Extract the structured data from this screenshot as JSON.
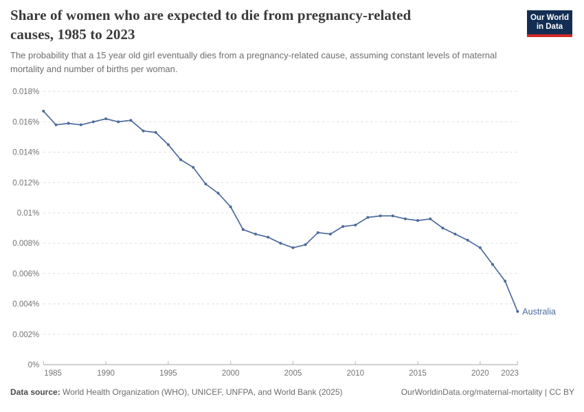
{
  "header": {
    "title": "Share of women who are expected to die from pregnancy-related causes, 1985 to 2023",
    "subtitle": "The probability that a 15 year old girl eventually dies from a pregnancy-related cause, assuming constant levels of maternal mortality and number of births per woman.",
    "logo": {
      "line1": "Our World",
      "line2": "in Data",
      "bg_color": "#132e52",
      "bar_color": "#d22a27"
    }
  },
  "chart_data": {
    "type": "line",
    "title": "Share of women who are expected to die from pregnancy-related causes, 1985 to 2023",
    "unit": "%",
    "grid": "horizontal-dashed",
    "legend_position": "end-of-line-label",
    "ylim": [
      0,
      0.018
    ],
    "ytick_values": [
      0,
      0.002,
      0.004,
      0.006,
      0.008,
      0.01,
      0.012,
      0.014,
      0.016,
      0.018
    ],
    "ytick_labels": [
      "0%",
      "0.002%",
      "0.004%",
      "0.006%",
      "0.008%",
      "0.01%",
      "0.012%",
      "0.014%",
      "0.016%",
      "0.018%"
    ],
    "xtick_values": [
      1985,
      1990,
      1995,
      2000,
      2005,
      2010,
      2015,
      2020,
      2023
    ],
    "x": [
      1985,
      1986,
      1987,
      1988,
      1989,
      1990,
      1991,
      1992,
      1993,
      1994,
      1995,
      1996,
      1997,
      1998,
      1999,
      2000,
      2001,
      2002,
      2003,
      2004,
      2005,
      2006,
      2007,
      2008,
      2009,
      2010,
      2011,
      2012,
      2013,
      2014,
      2015,
      2016,
      2017,
      2018,
      2019,
      2020,
      2021,
      2022,
      2023
    ],
    "series": [
      {
        "name": "Australia",
        "color": "#4c6a9c",
        "values": [
          0.0167,
          0.0158,
          0.0159,
          0.0158,
          0.016,
          0.0162,
          0.016,
          0.0161,
          0.0154,
          0.0153,
          0.0145,
          0.0135,
          0.013,
          0.0119,
          0.0113,
          0.0104,
          0.0089,
          0.0086,
          0.0084,
          0.008,
          0.0077,
          0.0079,
          0.0087,
          0.0086,
          0.0091,
          0.0092,
          0.0097,
          0.0098,
          0.0098,
          0.0096,
          0.0095,
          0.0096,
          0.009,
          0.0086,
          0.0082,
          0.0077,
          0.0066,
          0.0055,
          0.0035
        ]
      }
    ]
  },
  "footer": {
    "datasource_label": "Data source:",
    "datasource_text": " World Health Organization (WHO), UNICEF, UNFPA, and World Bank (2025)",
    "link": "OurWorldinData.org/maternal-mortality | CC BY"
  }
}
